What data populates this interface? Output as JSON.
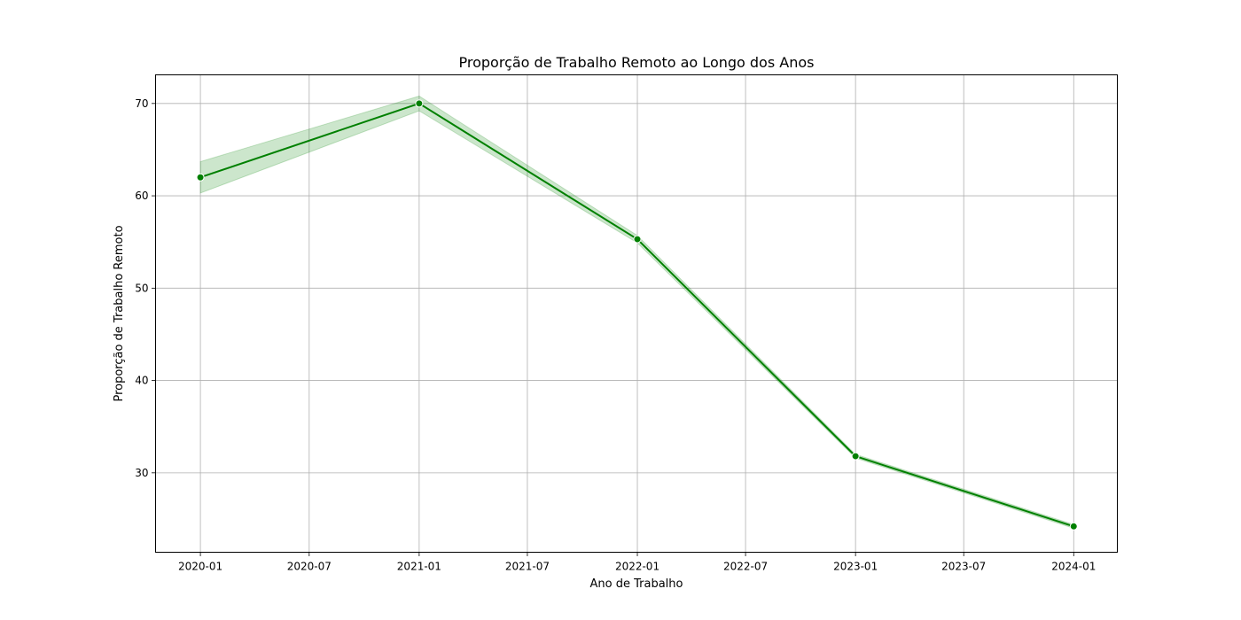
{
  "chart_data": {
    "type": "line",
    "title": "Proporção de Trabalho Remoto ao Longo dos Anos",
    "xlabel": "Ano de Trabalho",
    "ylabel": "Proporção de Trabalho Remoto",
    "x_ticks": [
      "2020-01",
      "2020-07",
      "2021-01",
      "2021-07",
      "2022-01",
      "2022-07",
      "2023-01",
      "2023-07",
      "2024-01"
    ],
    "y_ticks": [
      30,
      40,
      50,
      60,
      70
    ],
    "xlim": [
      "2019-10-18",
      "2024-03-14"
    ],
    "ylim": [
      21.4,
      73.1
    ],
    "grid": true,
    "series": [
      {
        "x": [
          "2020-01",
          "2021-01",
          "2022-01",
          "2023-01",
          "2024-01"
        ],
        "y": [
          62.0,
          70.0,
          55.3,
          31.8,
          24.2
        ],
        "ci_upper": [
          63.7,
          70.8,
          55.7,
          32.0,
          24.4
        ],
        "ci_lower": [
          60.3,
          69.2,
          54.9,
          31.6,
          24.0
        ],
        "color": "#008000",
        "band_color": "#008000",
        "marker": "circle"
      }
    ]
  }
}
